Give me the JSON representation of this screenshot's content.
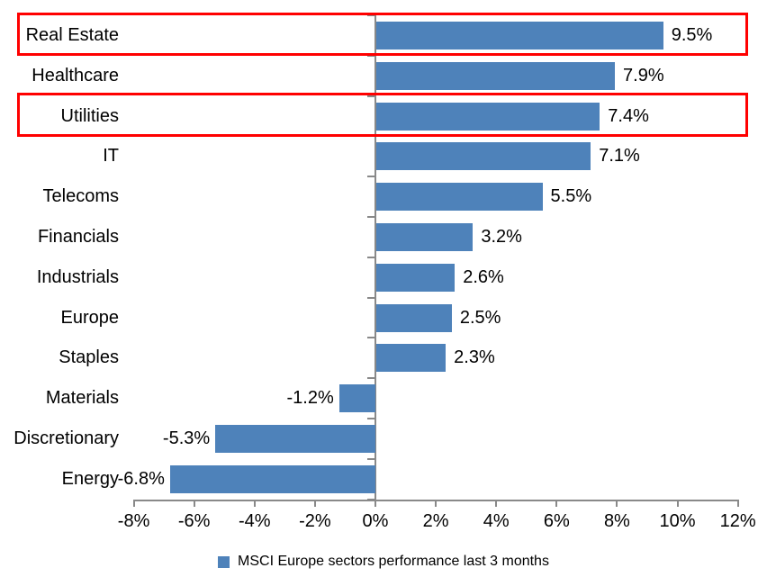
{
  "chart_data": {
    "type": "bar",
    "orientation": "horizontal",
    "title": "",
    "categories": [
      "Real Estate",
      "Healthcare",
      "Utilities",
      "IT",
      "Telecoms",
      "Financials",
      "Industrials",
      "Europe",
      "Staples",
      "Materials",
      "Discretionary",
      "Energy"
    ],
    "values": [
      9.5,
      7.9,
      7.4,
      7.1,
      5.5,
      3.2,
      2.6,
      2.5,
      2.3,
      -1.2,
      -5.3,
      -6.8
    ],
    "data_labels": [
      "9.5%",
      "7.9%",
      "7.4%",
      "7.1%",
      "5.5%",
      "3.2%",
      "2.6%",
      "2.5%",
      "2.3%",
      "-1.2%",
      "-5.3%",
      "-6.8%"
    ],
    "x_tick_values": [
      -8,
      -6,
      -4,
      -2,
      0,
      2,
      4,
      6,
      8,
      10,
      12
    ],
    "x_tick_labels": [
      "-8%",
      "-6%",
      "-4%",
      "-2%",
      "0%",
      "2%",
      "4%",
      "6%",
      "8%",
      "10%",
      "12%"
    ],
    "xlim": [
      -8,
      12
    ],
    "grid": "off",
    "legend": "MSCI Europe sectors performance last 3 months",
    "legend_position": "bottom-center",
    "bar_color": "#4e82ba",
    "axis_color": "#898989",
    "text_color": "#000000",
    "highlight_color": "#ff0000",
    "highlighted_categories": [
      "Real Estate",
      "Utilities"
    ],
    "highlighted_indices": [
      0,
      2
    ]
  }
}
